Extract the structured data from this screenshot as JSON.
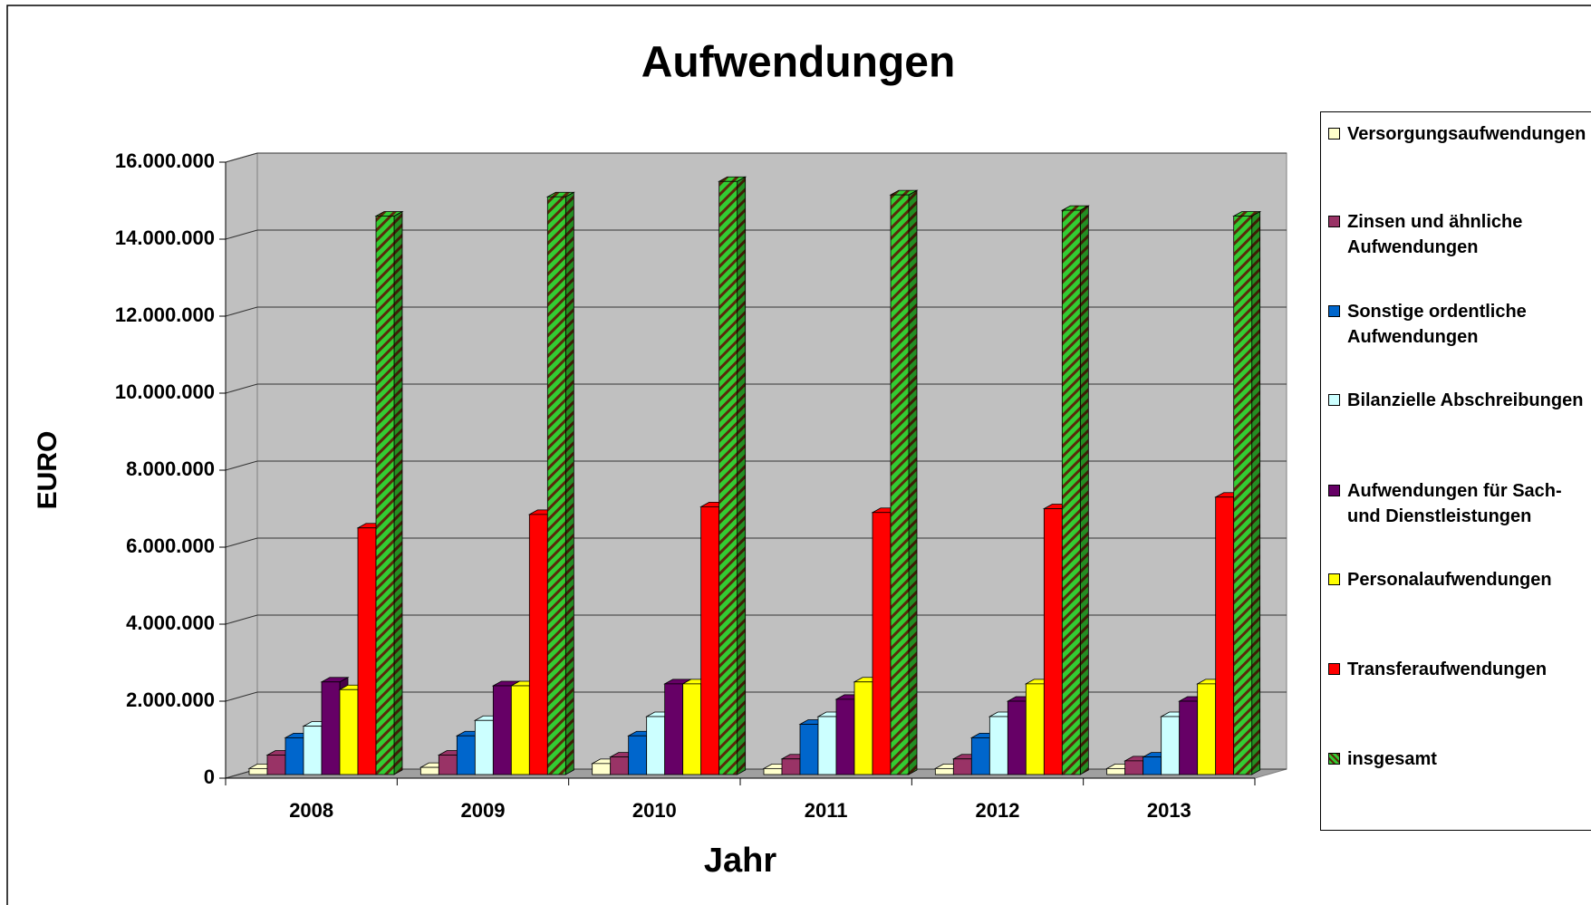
{
  "chart_data": {
    "type": "bar3d",
    "title": "Aufwendungen",
    "x_label": "Jahr",
    "y_label": "EURO",
    "categories": [
      "2008",
      "2009",
      "2010",
      "2011",
      "2012",
      "2013"
    ],
    "ylim": [
      0,
      16000000
    ],
    "yticks": [
      {
        "value": 0,
        "label": "0"
      },
      {
        "value": 2000000,
        "label": "2.000.000"
      },
      {
        "value": 4000000,
        "label": "4.000.000"
      },
      {
        "value": 6000000,
        "label": "6.000.000"
      },
      {
        "value": 8000000,
        "label": "8.000.000"
      },
      {
        "value": 10000000,
        "label": "10.000.000"
      },
      {
        "value": 12000000,
        "label": "12.000.000"
      },
      {
        "value": 14000000,
        "label": "14.000.000"
      },
      {
        "value": 16000000,
        "label": "16.000.000"
      }
    ],
    "grid": true,
    "legend": "right",
    "series": [
      {
        "name": "Versorgungsaufwendungen",
        "color": "#ffffcc",
        "values": [
          250000,
          280000,
          380000,
          250000,
          250000,
          250000
        ]
      },
      {
        "name": "Zinsen und ähnliche Aufwendungen",
        "color": "#993366",
        "values": [
          600000,
          600000,
          550000,
          500000,
          500000,
          450000
        ]
      },
      {
        "name": "Sonstige ordentliche Aufwendungen",
        "color": "#0066cc",
        "values": [
          1050000,
          1100000,
          1100000,
          1400000,
          1050000,
          550000
        ]
      },
      {
        "name": "Bilanzielle Abschreibungen",
        "color": "#ccffff",
        "values": [
          1350000,
          1500000,
          1600000,
          1600000,
          1600000,
          1600000
        ]
      },
      {
        "name": "Aufwendungen für Sach- und Dienstleistungen",
        "color": "#660066",
        "values": [
          2500000,
          2400000,
          2450000,
          2050000,
          2000000,
          2000000
        ]
      },
      {
        "name": "Personalaufwendungen",
        "color": "#ffff00",
        "values": [
          2300000,
          2400000,
          2450000,
          2500000,
          2450000,
          2450000
        ]
      },
      {
        "name": "Transferaufwendungen",
        "color": "#ff0000",
        "values": [
          6500000,
          6850000,
          7050000,
          6900000,
          7000000,
          7300000
        ]
      },
      {
        "name": "insgesamt",
        "color": "#33cc33",
        "hatch": true,
        "values": [
          14600000,
          15100000,
          15500000,
          15150000,
          14750000,
          14600000
        ]
      }
    ]
  }
}
